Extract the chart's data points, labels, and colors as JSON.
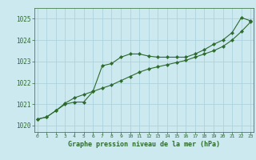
{
  "x": [
    0,
    1,
    2,
    3,
    4,
    5,
    6,
    7,
    8,
    9,
    10,
    11,
    12,
    13,
    14,
    15,
    16,
    17,
    18,
    19,
    20,
    21,
    22,
    23
  ],
  "line1": [
    1020.3,
    1020.4,
    1020.7,
    1021.0,
    1021.1,
    1021.1,
    1021.6,
    1022.8,
    1022.9,
    1023.2,
    1023.35,
    1023.35,
    1023.25,
    1023.2,
    1023.2,
    1023.2,
    1023.2,
    1023.35,
    1023.55,
    1023.8,
    1024.0,
    1024.35,
    1025.05,
    1024.9
  ],
  "line2": [
    1020.3,
    1020.4,
    1020.7,
    1021.05,
    1021.3,
    1021.45,
    1021.6,
    1021.75,
    1021.9,
    1022.1,
    1022.3,
    1022.5,
    1022.65,
    1022.75,
    1022.85,
    1022.95,
    1023.05,
    1023.2,
    1023.35,
    1023.5,
    1023.7,
    1024.0,
    1024.4,
    1024.85
  ],
  "line_color": "#2d6a2d",
  "marker": "D",
  "marker_size": 2.2,
  "bg_color": "#cce9f0",
  "grid_color": "#a8cfd8",
  "xlabel": "Graphe pression niveau de la mer (hPa)",
  "ylim": [
    1019.7,
    1025.5
  ],
  "xlim": [
    -0.3,
    23.3
  ],
  "yticks": [
    1020,
    1021,
    1022,
    1023,
    1024,
    1025
  ],
  "xticks": [
    0,
    1,
    2,
    3,
    4,
    5,
    6,
    7,
    8,
    9,
    10,
    11,
    12,
    13,
    14,
    15,
    16,
    17,
    18,
    19,
    20,
    21,
    22,
    23
  ],
  "xlabel_fontsize": 6.0,
  "ytick_fontsize": 5.5,
  "xtick_fontsize": 4.5
}
